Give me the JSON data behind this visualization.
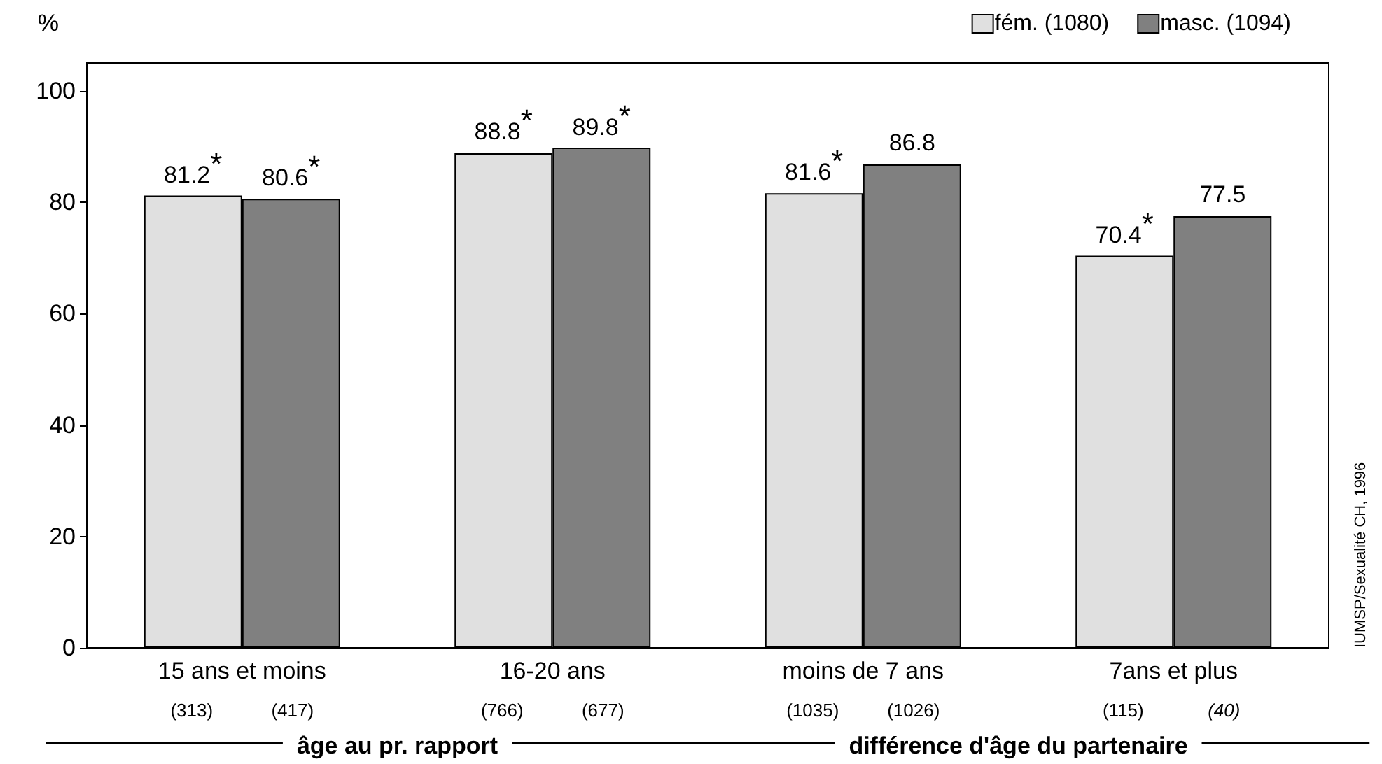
{
  "chart_data": {
    "type": "bar",
    "ylabel": "%",
    "categories": [
      "15 ans et moins",
      "16-20 ans",
      "moins de 7 ans",
      "7ans et plus"
    ],
    "series": [
      {
        "name": "fém. (1080)",
        "color": "#e0e0e0",
        "values": [
          81.2,
          88.8,
          81.6,
          70.4
        ],
        "value_labels": [
          "81.2$^{*}$",
          "88.8$^{*}$",
          "81.6$^{*}$",
          "70.4$^{*}$"
        ]
      },
      {
        "name": "masc. (1094)",
        "color": "#808080",
        "values": [
          80.6,
          89.8,
          86.8,
          77.5
        ],
        "value_labels": [
          "80.6$^{*}$",
          "89.8$^{*}$",
          "86.8",
          "77.5"
        ]
      }
    ],
    "ylim": [
      0,
      105
    ],
    "yticks": [
      0,
      20,
      40,
      60,
      80,
      100
    ],
    "grid": false,
    "legend": "top right",
    "annotations": [
      "(313)",
      "(417)",
      "(766)",
      "(677)",
      "(1035)",
      "(1026)",
      "(115)",
      "(40)",
      "âge au pr. rapport",
      "différence d'âge du partenaire",
      "IUMSP/Sexualité CH, 1996"
    ]
  }
}
